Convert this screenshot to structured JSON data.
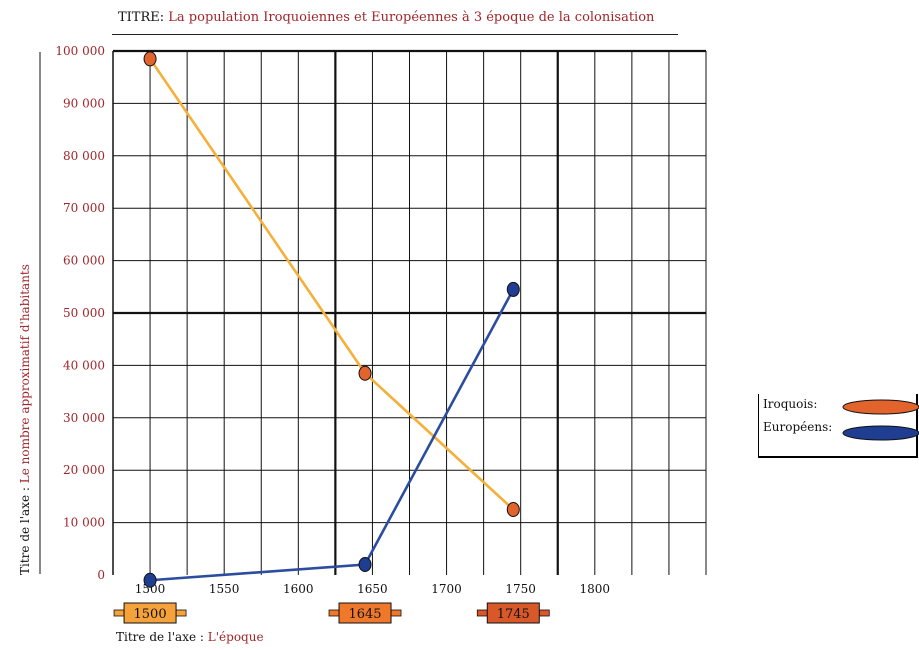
{
  "title": {
    "prefix": "TITRE:",
    "text": "La population Iroquoiennes  et Européennes à 3 époque de la colonisation"
  },
  "x_axis_title": {
    "prefix": "Titre de l'axe :",
    "text": "L'époque"
  },
  "y_axis_title": {
    "prefix": "Titre de l'axe :",
    "text": "Le nombre approximatif d'habitants"
  },
  "legend": [
    {
      "label": "Iroquois:",
      "color": "#e2632b"
    },
    {
      "label": "Européens:",
      "color": "#1f3d91"
    }
  ],
  "epoch_labels": [
    {
      "label": "1500",
      "x": 1500,
      "fill": "#f5a23a"
    },
    {
      "label": "1645",
      "x": 1645,
      "fill": "#f0782a"
    },
    {
      "label": "1745",
      "x": 1745,
      "fill": "#d9582a"
    }
  ],
  "chart_data": {
    "type": "line",
    "xlim": [
      1475,
      1875
    ],
    "ylim": [
      0,
      100000
    ],
    "x_ticks": [
      1500,
      1550,
      1600,
      1650,
      1700,
      1750,
      1800
    ],
    "y_ticks": [
      0,
      10000,
      20000,
      30000,
      40000,
      50000,
      60000,
      70000,
      80000,
      90000,
      100000
    ],
    "y_tick_labels": [
      "0",
      "10 000",
      "20 000",
      "30 000",
      "40 000",
      "50 000",
      "60 000",
      "70 000",
      "80 000",
      "90 000",
      "100 000"
    ],
    "grid": true,
    "legend_position": "right",
    "series": [
      {
        "name": "Iroquois",
        "line_color": "#f5b03a",
        "marker_color": "#e2632b",
        "x": [
          1500,
          1645,
          1745
        ],
        "y": [
          98500,
          38500,
          12500
        ]
      },
      {
        "name": "Européens",
        "line_color": "#2c4d9e",
        "marker_color": "#1f3d91",
        "x": [
          1500,
          1645,
          1745
        ],
        "y": [
          -1000,
          2000,
          54500
        ]
      }
    ]
  }
}
